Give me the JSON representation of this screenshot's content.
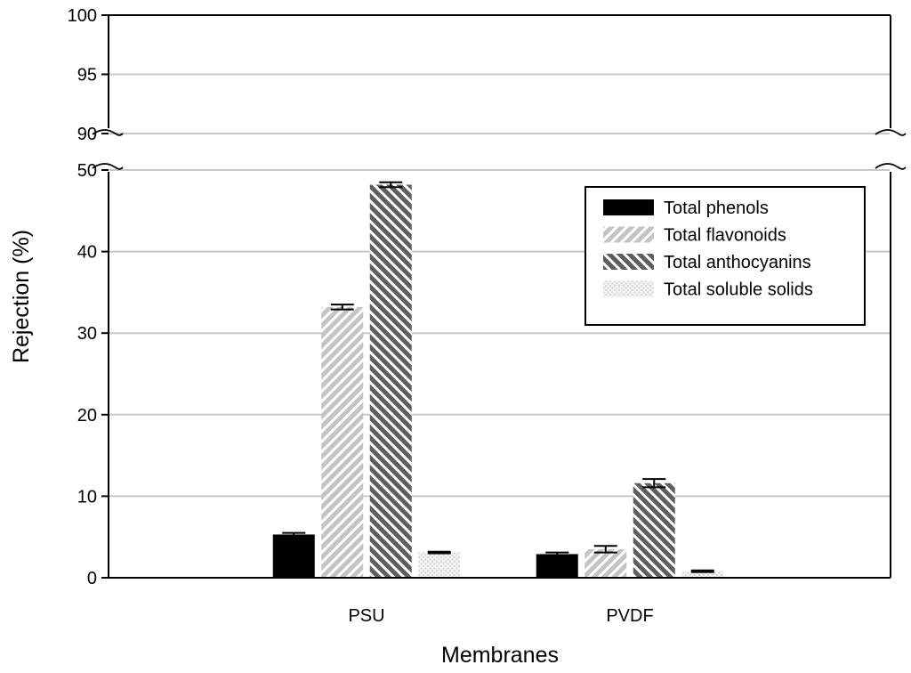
{
  "chart_data": {
    "type": "bar",
    "title": "",
    "xlabel": "Membranes",
    "ylabel": "Rejection (%)",
    "categories": [
      "PSU",
      "PVDF"
    ],
    "y_axis_break": {
      "lower_range": [
        0,
        50
      ],
      "upper_range": [
        90,
        100
      ]
    },
    "y_ticks_lower": [
      0,
      10,
      20,
      30,
      40,
      50
    ],
    "y_ticks_upper": [
      90,
      95,
      100
    ],
    "grid": "horizontal",
    "legend_position": "top-right",
    "series": [
      {
        "name": "Total phenols",
        "values": [
          5.3,
          2.9
        ],
        "errors": [
          0.2,
          0.2
        ],
        "pattern": "solid",
        "color": "#000000"
      },
      {
        "name": "Total flavonoids",
        "values": [
          33.2,
          3.5
        ],
        "errors": [
          0.3,
          0.4
        ],
        "pattern": "diagonal-forward",
        "color": "#c8c8c8"
      },
      {
        "name": "Total anthocyanins",
        "values": [
          48.2,
          11.6
        ],
        "errors": [
          0.3,
          0.5
        ],
        "pattern": "diagonal-back",
        "color": "#6a6a6a"
      },
      {
        "name": "Total soluble solids",
        "values": [
          3.1,
          0.8
        ],
        "errors": [
          0.1,
          0.1
        ],
        "pattern": "crosshatch",
        "color": "#e4e4e4"
      }
    ]
  }
}
